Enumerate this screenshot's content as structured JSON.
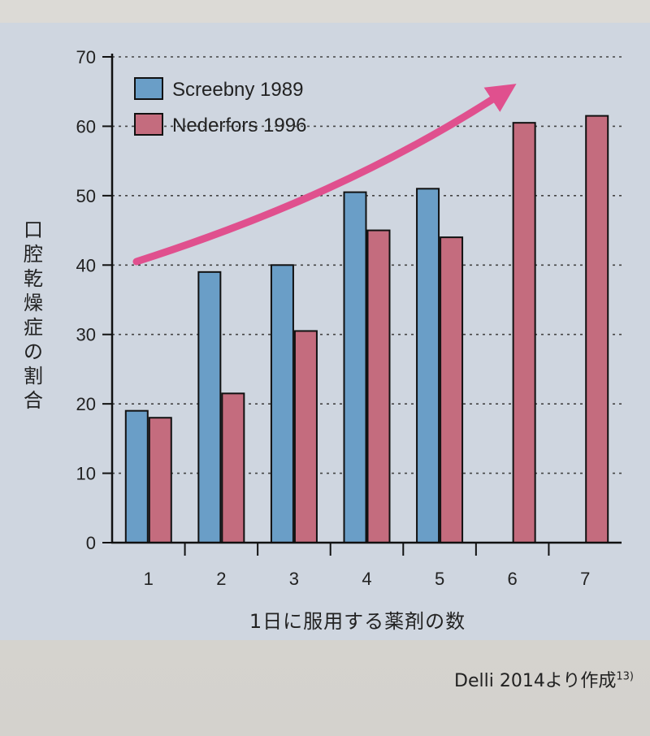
{
  "chart_data": {
    "type": "bar",
    "title": "",
    "xlabel": "1日に服用する薬剤の数",
    "ylabel": "口腔乾燥症の割合",
    "categories": [
      "1",
      "2",
      "3",
      "4",
      "5",
      "6",
      "7"
    ],
    "ylim": [
      0,
      70
    ],
    "yticks": [
      0,
      10,
      20,
      30,
      40,
      50,
      60,
      70
    ],
    "grid": "dotted horizontal",
    "legend": "top-left",
    "series": [
      {
        "name": "Screebny 1989",
        "color": "#6a9ec7",
        "values": [
          19,
          39,
          40,
          50.5,
          51,
          null,
          null
        ]
      },
      {
        "name": "Nederfors 1996",
        "color": "#c46c7e",
        "values": [
          18,
          21.5,
          30.5,
          45,
          44,
          60.5,
          61.5
        ]
      }
    ],
    "annotation": "pink upward trend arrow"
  },
  "source": {
    "text": "Delli 2014より作成",
    "ref": "13)"
  },
  "colors": {
    "panel": "#cfd6e0",
    "arrow": "#e0508e"
  }
}
